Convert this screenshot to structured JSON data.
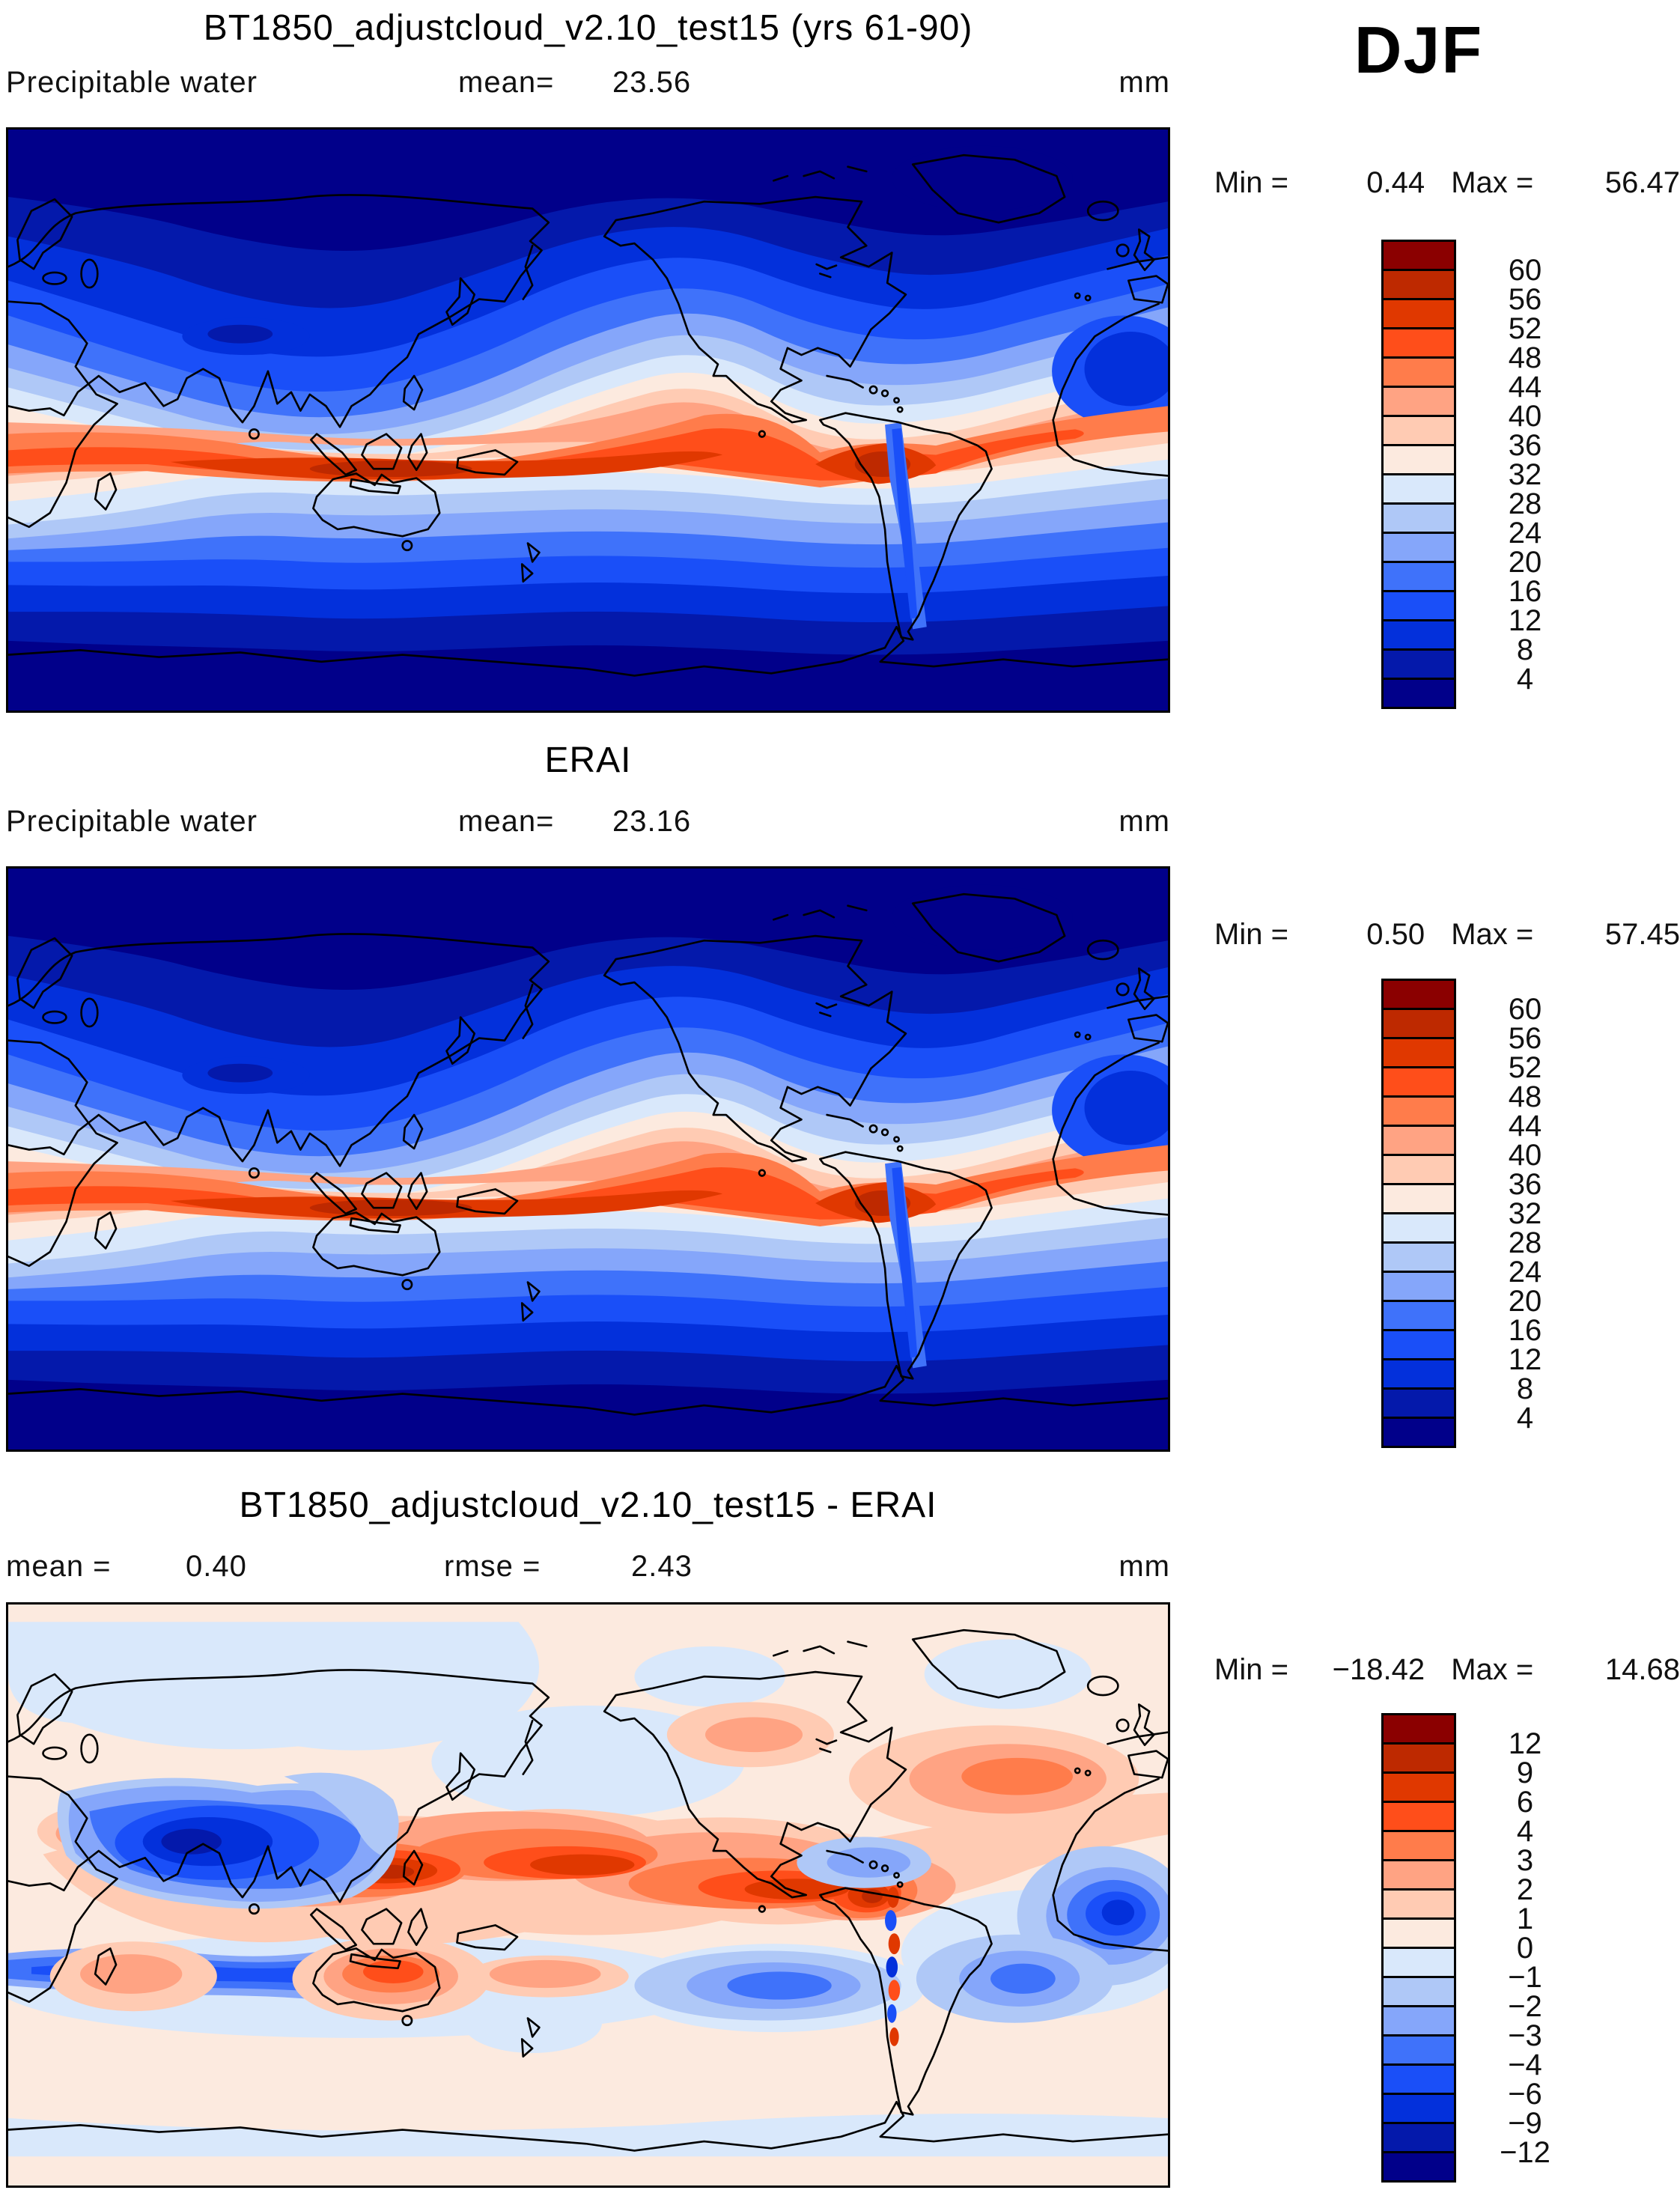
{
  "season_label": "DJF",
  "panel1": {
    "title": "BT1850_adjustcloud_v2.10_test15 (yrs 61-90)",
    "variable": "Precipitable water",
    "mean_label": "mean=",
    "mean_value": "23.56",
    "units": "mm",
    "min_label": "Min = ",
    "min_value": "0.44",
    "max_label": " Max = ",
    "max_value": "56.47"
  },
  "panel2": {
    "title": "ERAI",
    "variable": "Precipitable water",
    "mean_label": "mean=",
    "mean_value": "23.16",
    "units": "mm",
    "min_label": "Min = ",
    "min_value": "0.50",
    "max_label": " Max = ",
    "max_value": "57.45"
  },
  "panel3": {
    "title": "BT1850_adjustcloud_v2.10_test15 - ERAI",
    "mean_label": "mean = ",
    "mean_value": "0.40",
    "rmse_label": "rmse = ",
    "rmse_value": "2.43",
    "units": "mm",
    "min_label": "Min = ",
    "min_value": "−18.42",
    "max_label": " Max = ",
    "max_value": "14.68"
  },
  "colorbar_abs": {
    "tick_labels": [
      "60",
      "56",
      "52",
      "48",
      "44",
      "40",
      "36",
      "32",
      "28",
      "24",
      "20",
      "16",
      "12",
      "8",
      "4"
    ]
  },
  "colorbar_diff": {
    "tick_labels": [
      "12",
      "9",
      "6",
      "4",
      "3",
      "2",
      "1",
      "0",
      "−1",
      "−2",
      "−3",
      "−4",
      "−6",
      "−9",
      "−12"
    ]
  },
  "palette_top_to_bottom": [
    "#8B0000",
    "#BE2900",
    "#E03800",
    "#FF4E1A",
    "#FF7C4B",
    "#FFA383",
    "#FFCBB3",
    "#FCEADF",
    "#D9E8FB",
    "#AFC8F7",
    "#85A6FA",
    "#3F72FA",
    "#1A4FF8",
    "#0330DB",
    "#0419AB",
    "#01008A"
  ],
  "chart_data": [
    {
      "type": "heatmap",
      "title": "BT1850_adjustcloud_v2.10_test15 (yrs 61-90)",
      "variable": "Precipitable water",
      "season": "DJF",
      "units": "mm",
      "mean": 23.56,
      "min": 0.44,
      "max": 56.47,
      "contour_levels": [
        4,
        8,
        12,
        16,
        20,
        24,
        28,
        32,
        36,
        40,
        44,
        48,
        52,
        56,
        60
      ],
      "projection": "global lat-lon, Pacific-centered",
      "colormap": "blue-white-red diverging, 16 bands",
      "pattern": "dark blue minima at poles and winter continents, red maximum band 40-56 mm along tropics (Indo-Pacific warm pool, Amazon)"
    },
    {
      "type": "heatmap",
      "title": "ERAI",
      "variable": "Precipitable water",
      "season": "DJF",
      "units": "mm",
      "mean": 23.16,
      "min": 0.5,
      "max": 57.45,
      "contour_levels": [
        4,
        8,
        12,
        16,
        20,
        24,
        28,
        32,
        36,
        40,
        44,
        48,
        52,
        56,
        60
      ],
      "projection": "global lat-lon, Pacific-centered",
      "colormap": "blue-white-red diverging, 16 bands",
      "pattern": "same structure as model panel: tropical moisture band 40-56 mm, polar minima below 4 mm"
    },
    {
      "type": "heatmap",
      "title": "BT1850_adjustcloud_v2.10_test15 - ERAI",
      "variable": "Precipitable water difference",
      "season": "DJF",
      "units": "mm",
      "mean": 0.4,
      "rmse": 2.43,
      "min": -18.42,
      "max": 14.68,
      "contour_levels": [
        -12,
        -9,
        -6,
        -4,
        -3,
        -2,
        -1,
        0,
        1,
        2,
        3,
        4,
        6,
        9,
        12
      ],
      "projection": "global lat-lon, Pacific-centered",
      "colormap": "blue-white-red diverging, 16 bands",
      "pattern": "wet bias (red) along equatorial Pacific, Australia, N Atlantic; dry bias (blue) over Arabian Sea/India, south Indian Ocean, tropical Atlantic"
    }
  ]
}
